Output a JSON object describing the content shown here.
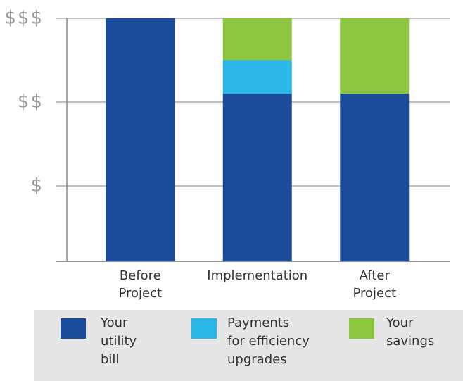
{
  "chart_data": {
    "type": "stacked_bar",
    "categories": [
      "Before\nProject",
      "Implementation",
      "After\nProject"
    ],
    "series": [
      {
        "name": "Your\nutility\nbill",
        "color": "#1b4b9b",
        "values": [
          3,
          2.1,
          2.1
        ]
      },
      {
        "name": "Payments\nfor efficiency\nupgrades",
        "color": "#2bb6e8",
        "values": [
          0,
          0.4,
          0
        ]
      },
      {
        "name": "Your\nsavings",
        "color": "#8cc63f",
        "values": [
          0,
          0.5,
          0.9
        ]
      }
    ],
    "ylim": [
      0.1,
      3
    ],
    "yticks": [
      {
        "value": 1,
        "label": "$"
      },
      {
        "value": 2,
        "label": "$$"
      },
      {
        "value": 3,
        "label": "$$$"
      }
    ],
    "grid": true
  }
}
